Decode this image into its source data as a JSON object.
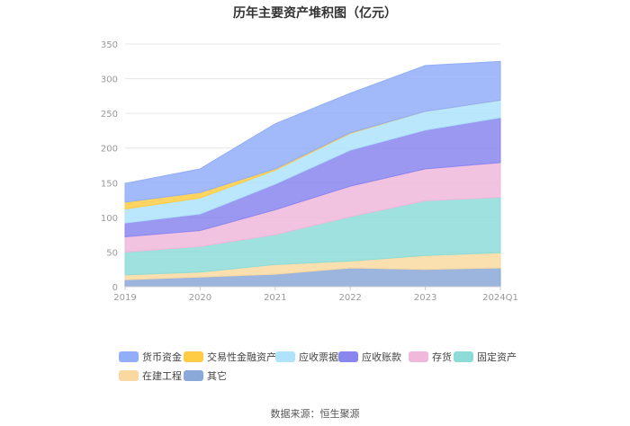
{
  "source": "数据来源：恒生聚源",
  "chart_data": {
    "type": "area",
    "title": "历年主要资产堆积图（亿元）",
    "xlabel": "",
    "ylabel": "",
    "categories": [
      "2019",
      "2020",
      "2021",
      "2022",
      "2023",
      "2024Q1"
    ],
    "ylim": [
      0,
      350
    ],
    "yticks": [
      0,
      50,
      100,
      150,
      200,
      250,
      300,
      350
    ],
    "grid": true,
    "stacked": true,
    "legend_position": "bottom",
    "series": [
      {
        "name": "其它",
        "color": "#8aa8d8",
        "values": [
          10,
          14,
          18,
          27,
          25,
          27
        ]
      },
      {
        "name": "在建工程",
        "color": "#f9d9a1",
        "values": [
          7,
          7,
          14,
          10,
          20,
          22
        ]
      },
      {
        "name": "固定资产",
        "color": "#8edcd8",
        "values": [
          33,
          37,
          43,
          64,
          79,
          80
        ]
      },
      {
        "name": "存货",
        "color": "#f0b8da",
        "values": [
          22,
          23,
          36,
          44,
          46,
          50
        ]
      },
      {
        "name": "应收账款",
        "color": "#8a86f0",
        "values": [
          20,
          24,
          37,
          52,
          56,
          65
        ]
      },
      {
        "name": "应收票据",
        "color": "#aee3fb",
        "values": [
          20,
          23,
          20,
          24,
          27,
          25
        ]
      },
      {
        "name": "交易性金融资产",
        "color": "#ffcc44",
        "values": [
          10,
          8,
          2,
          1,
          0,
          0
        ]
      },
      {
        "name": "货币资金",
        "color": "#92aef8",
        "values": [
          27,
          34,
          65,
          57,
          66,
          56
        ]
      }
    ]
  }
}
